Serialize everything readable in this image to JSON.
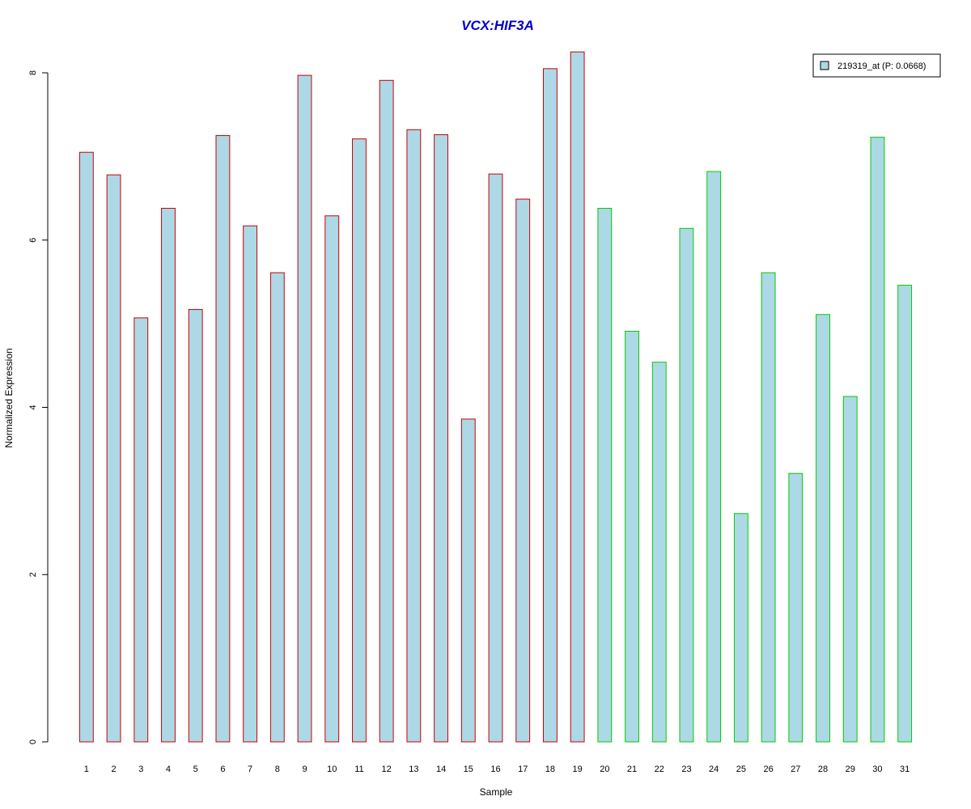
{
  "chart_data": {
    "type": "bar",
    "title": "VCX:HIF3A",
    "xlabel": "Sample",
    "ylabel": "Normalized Expression",
    "ylim": [
      0,
      8.3
    ],
    "yticks": [
      0,
      2,
      4,
      6,
      8
    ],
    "categories": [
      "1",
      "2",
      "3",
      "4",
      "5",
      "6",
      "7",
      "8",
      "9",
      "10",
      "11",
      "12",
      "13",
      "14",
      "15",
      "16",
      "17",
      "18",
      "19",
      "20",
      "21",
      "22",
      "23",
      "24",
      "25",
      "26",
      "27",
      "28",
      "29",
      "30",
      "31"
    ],
    "series": [
      {
        "name": "219319_at (P: 0.0668)",
        "values": [
          7.05,
          6.78,
          5.07,
          6.38,
          5.17,
          7.25,
          6.17,
          5.61,
          7.97,
          6.29,
          7.21,
          7.91,
          7.32,
          7.26,
          3.86,
          6.79,
          6.49,
          8.05,
          8.25,
          6.38,
          4.91,
          4.54,
          6.14,
          6.82,
          2.73,
          5.61,
          3.21,
          5.11,
          4.13,
          7.23,
          5.46
        ]
      }
    ],
    "group_edge_colors": [
      "#cc0000",
      "#cc0000",
      "#cc0000",
      "#cc0000",
      "#cc0000",
      "#cc0000",
      "#cc0000",
      "#cc0000",
      "#cc0000",
      "#cc0000",
      "#cc0000",
      "#cc0000",
      "#cc0000",
      "#cc0000",
      "#cc0000",
      "#cc0000",
      "#cc0000",
      "#cc0000",
      "#cc0000",
      "#00cc00",
      "#00cc00",
      "#00cc00",
      "#00cc00",
      "#00cc00",
      "#00cc00",
      "#00cc00",
      "#00cc00",
      "#00cc00",
      "#00cc00",
      "#00cc00",
      "#00cc00"
    ],
    "bar_fill": "#add8e6",
    "title_color": "#0000cc",
    "grid": false,
    "legend_position": "top-right"
  }
}
